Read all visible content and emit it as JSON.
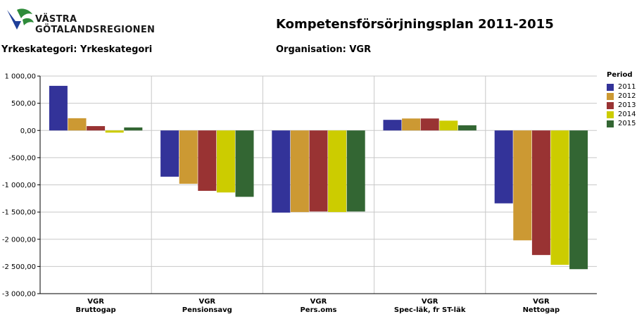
{
  "header": {
    "logo_line1": "VÄSTRA",
    "logo_line2": "GÖTALANDSREGIONEN",
    "title": "Kompetensförsörjningsplan 2011-2015",
    "left_label": "Yrkeskategori: Yrkeskategori",
    "right_label": "Organisation: VGR"
  },
  "legend": {
    "title": "Period"
  },
  "colors": {
    "2011": "#333399",
    "2012": "#cc9933",
    "2013": "#993333",
    "2014": "#cccc00",
    "2015": "#336633",
    "logo_green": "#2e8b3a",
    "logo_blue": "#1f3f99"
  },
  "chart_data": {
    "type": "bar",
    "categories": [
      {
        "line1": "VGR",
        "line2": "Bruttogap"
      },
      {
        "line1": "VGR",
        "line2": "Pensionsavg"
      },
      {
        "line1": "VGR",
        "line2": "Pers.oms"
      },
      {
        "line1": "VGR",
        "line2": "Spec-läk, fr ST-läk"
      },
      {
        "line1": "VGR",
        "line2": "Nettogap"
      }
    ],
    "series": [
      {
        "name": "2011",
        "values": [
          820,
          -850,
          -1510,
          195,
          -1340
        ]
      },
      {
        "name": "2012",
        "values": [
          225,
          -980,
          -1500,
          220,
          -2020
        ]
      },
      {
        "name": "2013",
        "values": [
          80,
          -1110,
          -1490,
          220,
          -2290
        ]
      },
      {
        "name": "2014",
        "values": [
          -40,
          -1140,
          -1500,
          180,
          -2470
        ]
      },
      {
        "name": "2015",
        "values": [
          55,
          -1220,
          -1490,
          95,
          -2550
        ]
      }
    ],
    "ylim": [
      -3000,
      1000
    ],
    "yticks": [
      "1 000,00",
      "500,00",
      "0,00",
      "-500,00",
      "-1 000,00",
      "-1 500,00",
      "-2 000,00",
      "-2 500,00",
      "-3 000,00"
    ],
    "ytick_values": [
      1000,
      500,
      0,
      -500,
      -1000,
      -1500,
      -2000,
      -2500,
      -3000
    ],
    "grid": true,
    "legend_position": "right"
  }
}
